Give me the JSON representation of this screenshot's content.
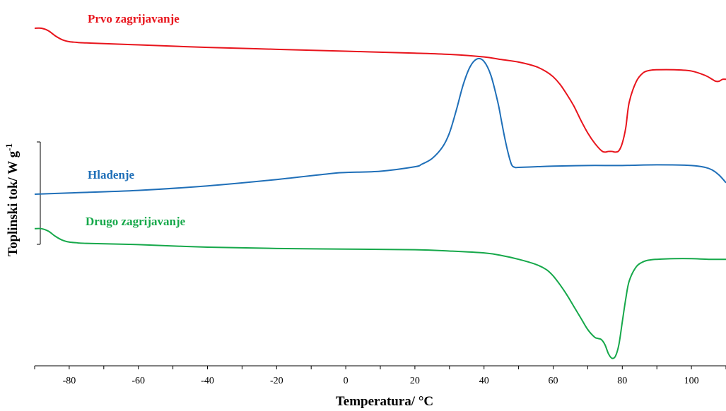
{
  "chart_data": {
    "type": "line",
    "title": "",
    "xlabel": "Temperatura/ °C",
    "ylabel": "Toplinski tok/ W g",
    "ylabel_superscript": "-1",
    "xlim": [
      -90,
      110
    ],
    "x_ticks": [
      -80,
      -60,
      -40,
      -20,
      0,
      20,
      40,
      60,
      80,
      100
    ],
    "y_scale_bar": true,
    "grid": false,
    "legend": "inline labels",
    "series": [
      {
        "name": "Prvo zagrijavanje",
        "color": "#e8141c",
        "x": [
          -90,
          -88,
          -86,
          -84,
          -82,
          -80,
          -78,
          -75,
          -60,
          -40,
          -20,
          0,
          20,
          30,
          40,
          45,
          50,
          55,
          58,
          60,
          62,
          64,
          66,
          68,
          70,
          72,
          74,
          75,
          76,
          77,
          78,
          79,
          80,
          81,
          82,
          84,
          86,
          88,
          90,
          95,
          100,
          104,
          106,
          107,
          108,
          109,
          110
        ],
        "y": [
          1.3,
          1.3,
          1.28,
          1.24,
          1.21,
          1.195,
          1.19,
          1.185,
          1.17,
          1.15,
          1.135,
          1.12,
          1.105,
          1.095,
          1.075,
          1.055,
          1.035,
          1.0,
          0.96,
          0.92,
          0.86,
          0.78,
          0.69,
          0.58,
          0.48,
          0.4,
          0.34,
          0.33,
          0.335,
          0.335,
          0.33,
          0.34,
          0.4,
          0.52,
          0.72,
          0.88,
          0.95,
          0.97,
          0.975,
          0.975,
          0.965,
          0.93,
          0.9,
          0.885,
          0.885,
          0.9,
          0.9
        ]
      },
      {
        "name": "Hlađenje",
        "color": "#1f6fb8",
        "x": [
          -90,
          -80,
          -60,
          -40,
          -20,
          -5,
          0,
          10,
          20,
          22,
          25,
          28,
          30,
          32,
          34,
          36,
          38,
          40,
          42,
          44,
          45,
          46,
          47,
          48,
          49,
          50,
          55,
          60,
          70,
          80,
          90,
          100,
          104,
          106,
          108,
          110
        ],
        "y": [
          0.0,
          0.01,
          0.03,
          0.065,
          0.115,
          0.16,
          0.17,
          0.18,
          0.215,
          0.235,
          0.28,
          0.37,
          0.48,
          0.66,
          0.86,
          1.0,
          1.06,
          1.04,
          0.93,
          0.72,
          0.58,
          0.44,
          0.32,
          0.23,
          0.21,
          0.21,
          0.215,
          0.22,
          0.225,
          0.225,
          0.23,
          0.225,
          0.21,
          0.19,
          0.15,
          0.09
        ]
      },
      {
        "name": "Drugo zagrijavanje",
        "color": "#16a84a",
        "x": [
          -90,
          -88,
          -86,
          -84,
          -82,
          -80,
          -78,
          -75,
          -60,
          -40,
          -20,
          0,
          20,
          30,
          40,
          45,
          50,
          55,
          58,
          60,
          62,
          64,
          66,
          68,
          70,
          72,
          73,
          74,
          75,
          76,
          77,
          78,
          79,
          80,
          81,
          82,
          84,
          86,
          88,
          90,
          95,
          100,
          105,
          110
        ],
        "y": [
          -0.27,
          -0.27,
          -0.29,
          -0.33,
          -0.36,
          -0.375,
          -0.38,
          -0.385,
          -0.395,
          -0.415,
          -0.425,
          -0.43,
          -0.435,
          -0.445,
          -0.46,
          -0.48,
          -0.51,
          -0.55,
          -0.59,
          -0.64,
          -0.71,
          -0.79,
          -0.88,
          -0.97,
          -1.06,
          -1.12,
          -1.13,
          -1.14,
          -1.18,
          -1.25,
          -1.285,
          -1.27,
          -1.18,
          -1.0,
          -0.82,
          -0.68,
          -0.57,
          -0.53,
          -0.515,
          -0.51,
          -0.505,
          -0.505,
          -0.51,
          -0.51
        ]
      }
    ]
  }
}
